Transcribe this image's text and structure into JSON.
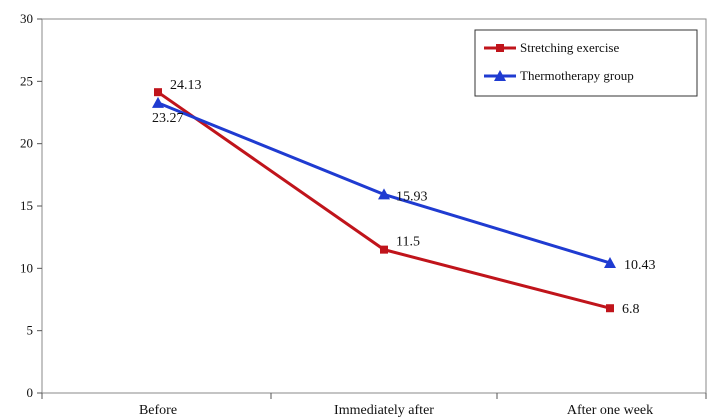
{
  "chart_data": {
    "type": "line",
    "title": "",
    "xlabel": "",
    "ylabel": "",
    "categories": [
      "Before",
      "Immediately after",
      "After one week"
    ],
    "ylim": [
      0,
      30
    ],
    "yticks": [
      0,
      5,
      10,
      15,
      20,
      25,
      30
    ],
    "grid": false,
    "legend_position": "top-right",
    "series": [
      {
        "name": "Stretching exercise",
        "values": [
          24.13,
          11.5,
          6.8
        ],
        "labels": [
          "24.13",
          "11.5",
          "6.8"
        ],
        "color": "#c0141b",
        "marker": "square"
      },
      {
        "name": "Thermotherapy  group",
        "values": [
          23.27,
          15.93,
          10.43
        ],
        "labels": [
          "23.27",
          "15.93",
          "10.43"
        ],
        "color": "#1f3bd1",
        "marker": "triangle"
      }
    ]
  }
}
